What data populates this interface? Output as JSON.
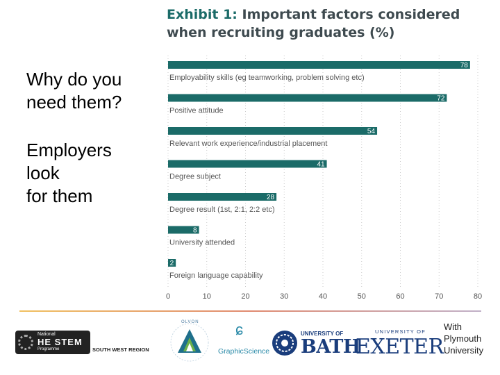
{
  "side_text": {
    "question": "Why do you\nneed them?",
    "answer": "Employers\nlook\nfor them"
  },
  "exhibit": {
    "label": "Exhibit 1:",
    "title": "Important factors considered when recruiting graduates (%)"
  },
  "chart_data": {
    "type": "bar",
    "orientation": "horizontal",
    "title": "Exhibit 1: Important factors considered when recruiting graduates (%)",
    "categories": [
      "Employability skills (eg teamworking, problem solving etc)",
      "Positive attitude",
      "Relevant work experience/industrial placement",
      "Degree subject",
      "Degree result (1st, 2:1, 2:2 etc)",
      "University attended",
      "Foreign language capability"
    ],
    "values": [
      78,
      72,
      54,
      41,
      28,
      8,
      2
    ],
    "xlim": [
      0,
      80
    ],
    "xticks": [
      0,
      10,
      20,
      30,
      40,
      50,
      60,
      70,
      80
    ],
    "grid": true,
    "bar_color": "#1b6b68"
  },
  "logos": {
    "stem_small": "National",
    "stem_big": "HE STEM",
    "stem_sub": "Programme",
    "region": "SOUTH WEST REGION",
    "olvon": "OLVON",
    "graphic_science": "GraphicScience",
    "bath_univ": "UNIVERSITY OF",
    "bath": "BATH",
    "exeter_univ": "UNIVERSITY OF",
    "exeter": "EXETER",
    "with": "With\nPlymouth\nUniversity"
  },
  "colors": {
    "accent": "#1b6b68",
    "title_gray": "#3e4a4f",
    "logo_blue": "#1a3d7c"
  }
}
